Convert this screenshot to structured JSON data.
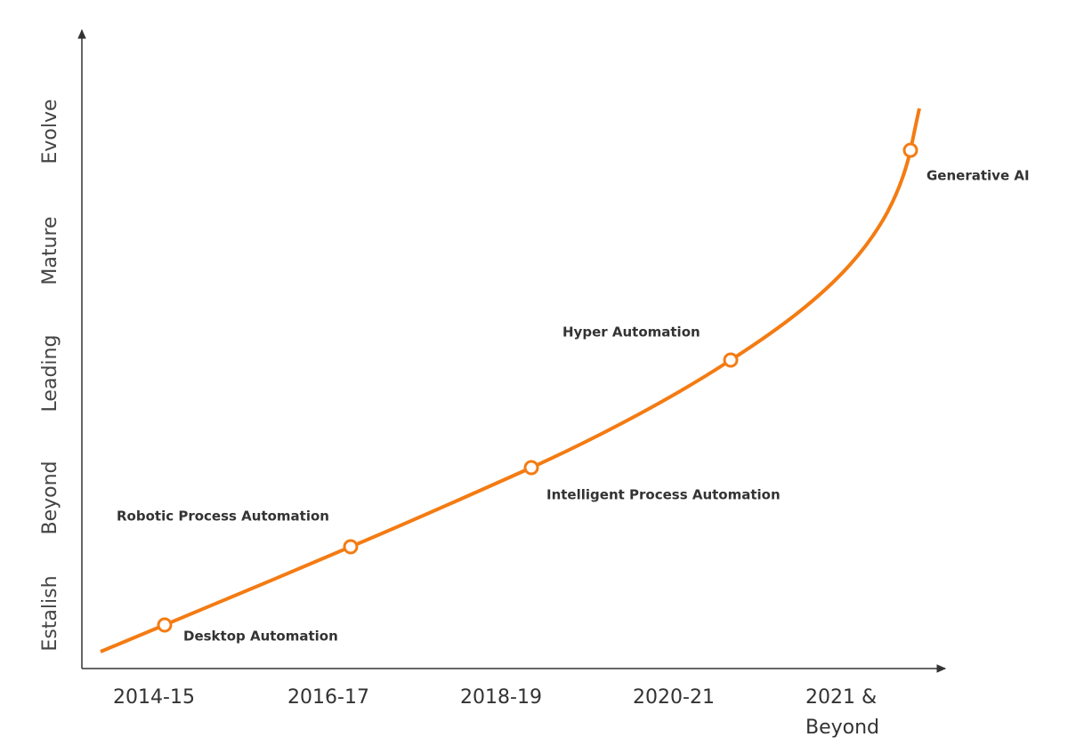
{
  "y_axis_labels": [
    "Estalish",
    "Beyond",
    "Leading",
    "Mature",
    "Evolve"
  ],
  "x_axis_labels": [
    [
      "2014-15"
    ],
    [
      "2016-17"
    ],
    [
      "2018-19"
    ],
    [
      "2020-21"
    ],
    [
      "2021 &",
      "Beyond"
    ]
  ],
  "milestones": [
    "Desktop Automation",
    "Robotic Process Automation",
    "Intelligent Process Automation",
    "Hyper Automation",
    "Generative AI"
  ]
}
